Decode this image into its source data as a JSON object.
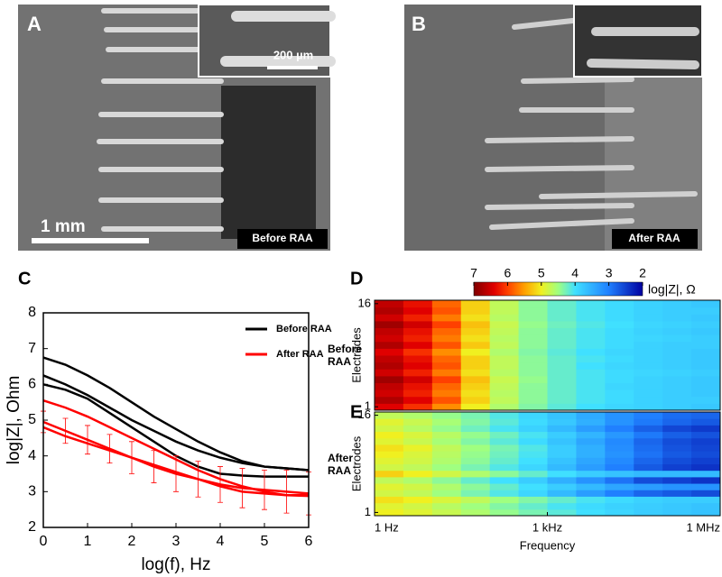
{
  "panels": [
    {
      "letter": "A",
      "scale": "1 mm",
      "inset_scale": "200 µm",
      "caption": "Before RAA"
    },
    {
      "letter": "B",
      "caption": "After RAA"
    }
  ],
  "chart_data": [
    {
      "type": "line",
      "panel": "C",
      "xlabel": "log(f), Hz",
      "ylabel": "log|Z|, Ohm",
      "x": [
        0,
        0.5,
        1,
        1.5,
        2,
        2.5,
        3,
        3.5,
        4,
        4.5,
        5,
        5.5,
        6
      ],
      "xlim": [
        0,
        6
      ],
      "ylim": [
        2,
        8
      ],
      "xticks": [
        0,
        1,
        2,
        3,
        4,
        5,
        6
      ],
      "yticks": [
        2,
        3,
        4,
        5,
        6,
        7,
        8
      ],
      "series": [
        {
          "name": "Before RAA",
          "color": "#000000",
          "curves": [
            {
              "values": [
                6.75,
                6.55,
                6.25,
                5.9,
                5.5,
                5.1,
                4.75,
                4.4,
                4.1,
                3.85,
                3.7,
                3.65,
                3.6
              ]
            },
            {
              "values": [
                6.25,
                6.0,
                5.7,
                5.35,
                5.0,
                4.7,
                4.4,
                4.15,
                3.95,
                3.8,
                3.7,
                3.65,
                3.6
              ]
            },
            {
              "values": [
                6.0,
                5.85,
                5.6,
                5.2,
                4.8,
                4.4,
                4.0,
                3.7,
                3.5,
                3.45,
                3.42,
                3.42,
                3.42
              ]
            }
          ]
        },
        {
          "name": "After RAA",
          "color": "#ff0000",
          "curves": [
            {
              "values": [
                5.55,
                5.35,
                5.1,
                4.8,
                4.5,
                4.2,
                3.9,
                3.6,
                3.35,
                3.15,
                3.0,
                2.9,
                2.88
              ]
            },
            {
              "values": [
                4.95,
                4.7,
                4.45,
                4.2,
                3.95,
                3.7,
                3.5,
                3.35,
                3.2,
                3.1,
                3.05,
                3.0,
                2.95
              ],
              "errors": [
                0.3,
                0.35,
                0.4,
                0.4,
                0.45,
                0.45,
                0.5,
                0.5,
                0.5,
                0.55,
                0.55,
                0.6,
                0.6
              ]
            },
            {
              "values": [
                4.8,
                4.55,
                4.35,
                4.15,
                3.95,
                3.75,
                3.55,
                3.35,
                3.15,
                3.0,
                2.95,
                2.9,
                2.9
              ]
            }
          ]
        }
      ]
    },
    {
      "type": "heatmap",
      "panel": "D",
      "row_label": "Before RAA",
      "ylabel": "Electrodes",
      "x": [
        0.25,
        0.75,
        1.25,
        1.75,
        2.25,
        2.75,
        3.25,
        3.75,
        4.25,
        4.75,
        5.25,
        5.75
      ],
      "xlim": [
        0,
        6
      ],
      "ylim": [
        0.5,
        16.5
      ],
      "yticks": [
        1,
        16
      ],
      "colorbar": {
        "label": "log|Z|, Ω",
        "lim": [
          7,
          2
        ],
        "ticks": [
          7,
          6,
          5,
          4,
          3,
          2
        ]
      },
      "values": [
        [
          6.4,
          6.1,
          5.6,
          5.0,
          4.6,
          4.35,
          4.15,
          4.0,
          3.9,
          3.85,
          3.8,
          3.75
        ],
        [
          6.7,
          6.4,
          5.9,
          5.2,
          4.7,
          4.4,
          4.2,
          4.05,
          3.95,
          3.85,
          3.8,
          3.8
        ],
        [
          6.5,
          6.2,
          5.7,
          5.1,
          4.65,
          4.4,
          4.2,
          4.05,
          3.95,
          3.85,
          3.8,
          3.75
        ],
        [
          6.6,
          6.3,
          5.8,
          5.2,
          4.7,
          4.4,
          4.2,
          4.05,
          3.9,
          3.85,
          3.8,
          3.75
        ],
        [
          6.8,
          6.5,
          6.0,
          5.3,
          4.75,
          4.45,
          4.2,
          4.05,
          3.95,
          3.85,
          3.8,
          3.75
        ],
        [
          6.5,
          6.2,
          5.7,
          5.1,
          4.65,
          4.4,
          4.2,
          4.05,
          3.95,
          3.9,
          3.85,
          3.8
        ],
        [
          6.7,
          6.4,
          5.9,
          5.2,
          4.7,
          4.4,
          4.2,
          4.0,
          3.9,
          3.85,
          3.8,
          3.75
        ],
        [
          6.6,
          6.3,
          5.8,
          5.2,
          4.7,
          4.4,
          4.2,
          4.05,
          3.95,
          3.85,
          3.8,
          3.75
        ],
        [
          6.4,
          6.1,
          5.6,
          5.0,
          4.6,
          4.35,
          4.15,
          4.0,
          3.9,
          3.85,
          3.8,
          3.75
        ],
        [
          6.7,
          6.4,
          5.9,
          5.25,
          4.7,
          4.4,
          4.2,
          4.05,
          3.95,
          3.85,
          3.8,
          3.8
        ],
        [
          6.5,
          6.2,
          5.7,
          5.1,
          4.65,
          4.4,
          4.2,
          4.05,
          3.95,
          3.9,
          3.85,
          3.8
        ],
        [
          6.6,
          6.3,
          5.8,
          5.2,
          4.7,
          4.4,
          4.2,
          4.05,
          3.95,
          3.85,
          3.8,
          3.75
        ],
        [
          6.8,
          6.5,
          6.0,
          5.3,
          4.75,
          4.45,
          4.25,
          4.1,
          4.0,
          3.9,
          3.85,
          3.8
        ],
        [
          6.5,
          6.2,
          5.7,
          5.1,
          4.65,
          4.4,
          4.2,
          4.05,
          3.95,
          3.85,
          3.8,
          3.75
        ],
        [
          6.7,
          6.4,
          5.9,
          5.2,
          4.7,
          4.4,
          4.2,
          4.05,
          3.95,
          3.85,
          3.8,
          3.8
        ],
        [
          6.6,
          6.3,
          5.8,
          5.2,
          4.7,
          4.4,
          4.2,
          4.05,
          3.95,
          3.85,
          3.8,
          3.75
        ]
      ]
    },
    {
      "type": "heatmap",
      "panel": "E",
      "row_label": "After RAA",
      "ylabel": "Electrodes",
      "xlabel": "Frequency",
      "x": [
        0.25,
        0.75,
        1.25,
        1.75,
        2.25,
        2.75,
        3.25,
        3.75,
        4.25,
        4.75,
        5.25,
        5.75
      ],
      "xlim": [
        0,
        6
      ],
      "ylim": [
        0.5,
        16.5
      ],
      "yticks": [
        1,
        16
      ],
      "xticks": [
        {
          "value": 0,
          "label": "1 Hz"
        },
        {
          "value": 3,
          "label": "1 kHz"
        },
        {
          "value": 6,
          "label": "1 MHz"
        }
      ],
      "values": [
        [
          5.0,
          4.9,
          4.75,
          4.6,
          4.45,
          4.3,
          4.15,
          4.0,
          3.9,
          3.8,
          3.75,
          3.7
        ],
        [
          4.9,
          4.8,
          4.65,
          4.5,
          4.35,
          4.2,
          4.05,
          3.95,
          3.85,
          3.8,
          3.75,
          3.7
        ],
        [
          5.1,
          5.0,
          4.85,
          4.7,
          4.5,
          4.35,
          4.2,
          4.05,
          3.95,
          3.85,
          3.8,
          3.8
        ],
        [
          4.8,
          4.7,
          4.5,
          4.3,
          4.1,
          3.9,
          3.6,
          3.3,
          3.0,
          2.8,
          2.7,
          2.6
        ],
        [
          4.9,
          4.8,
          4.6,
          4.4,
          4.2,
          4.0,
          3.8,
          3.6,
          3.4,
          3.3,
          3.2,
          3.2
        ],
        [
          4.7,
          4.6,
          4.4,
          4.2,
          4.0,
          3.8,
          3.5,
          3.2,
          2.9,
          2.6,
          2.5,
          2.4
        ],
        [
          5.2,
          5.0,
          4.8,
          4.6,
          4.4,
          4.2,
          4.0,
          3.8,
          3.7,
          3.6,
          3.6,
          3.6
        ],
        [
          4.8,
          4.7,
          4.5,
          4.3,
          4.1,
          3.9,
          3.6,
          3.3,
          3.0,
          2.7,
          2.5,
          2.4
        ],
        [
          4.9,
          4.8,
          4.6,
          4.4,
          4.2,
          4.0,
          3.7,
          3.4,
          3.1,
          2.8,
          2.6,
          2.5
        ],
        [
          5.0,
          4.85,
          4.65,
          4.45,
          4.25,
          4.05,
          3.8,
          3.5,
          3.2,
          2.9,
          2.7,
          2.6
        ],
        [
          5.1,
          4.95,
          4.7,
          4.5,
          4.3,
          4.1,
          3.8,
          3.5,
          3.15,
          2.85,
          2.65,
          2.55
        ],
        [
          4.9,
          4.75,
          4.55,
          4.35,
          4.15,
          3.95,
          3.7,
          3.4,
          3.1,
          2.8,
          2.6,
          2.5
        ],
        [
          5.0,
          4.85,
          4.65,
          4.45,
          4.25,
          4.05,
          3.8,
          3.55,
          3.25,
          2.95,
          2.75,
          2.65
        ],
        [
          4.8,
          4.65,
          4.45,
          4.25,
          4.05,
          3.85,
          3.6,
          3.3,
          3.0,
          2.75,
          2.55,
          2.45
        ],
        [
          4.9,
          4.75,
          4.55,
          4.35,
          4.15,
          3.95,
          3.75,
          3.5,
          3.2,
          2.95,
          2.8,
          2.7
        ],
        [
          4.7,
          4.6,
          4.45,
          4.3,
          4.1,
          3.9,
          3.7,
          3.45,
          3.2,
          3.0,
          2.85,
          2.8
        ]
      ]
    }
  ]
}
